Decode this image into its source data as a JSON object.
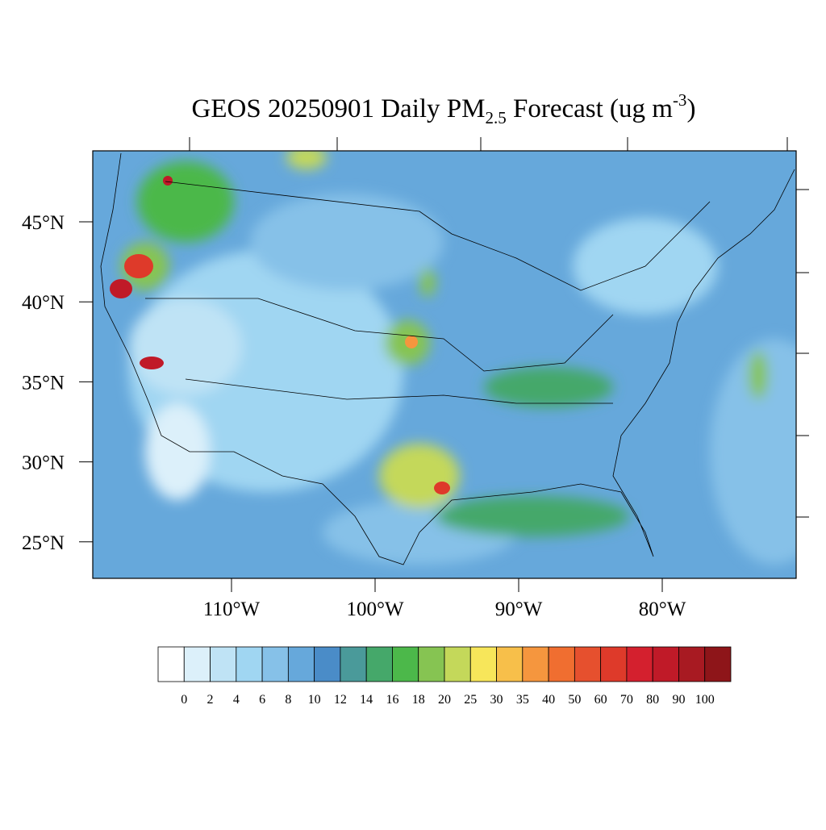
{
  "title": {
    "main": "GEOS 20250901 Daily PM",
    "sub": "2.5",
    "rest": " Forecast (ug m",
    "sup": "-3",
    "end": ")"
  },
  "lat_labels": [
    "45°N",
    "40°N",
    "35°N",
    "30°N",
    "25°N"
  ],
  "lon_labels": [
    "110°W",
    "100°W",
    "90°W",
    "80°W"
  ],
  "colorbar": {
    "labels": [
      0,
      2,
      4,
      6,
      8,
      10,
      12,
      14,
      16,
      18,
      20,
      25,
      30,
      35,
      40,
      50,
      60,
      70,
      80,
      90,
      100
    ],
    "colors": [
      "#ffffff",
      "#dcf0fa",
      "#bfe3f5",
      "#a0d6f2",
      "#86c1e8",
      "#66a8db",
      "#4a8cc8",
      "#4a9a9a",
      "#45a86a",
      "#4cb84a",
      "#86c452",
      "#c4d85a",
      "#f7e65a",
      "#f7bf4a",
      "#f5963e",
      "#f06e30",
      "#e6502e",
      "#de3a2a",
      "#d4202e",
      "#c01a28",
      "#a81a22",
      "#8e1519"
    ]
  }
}
